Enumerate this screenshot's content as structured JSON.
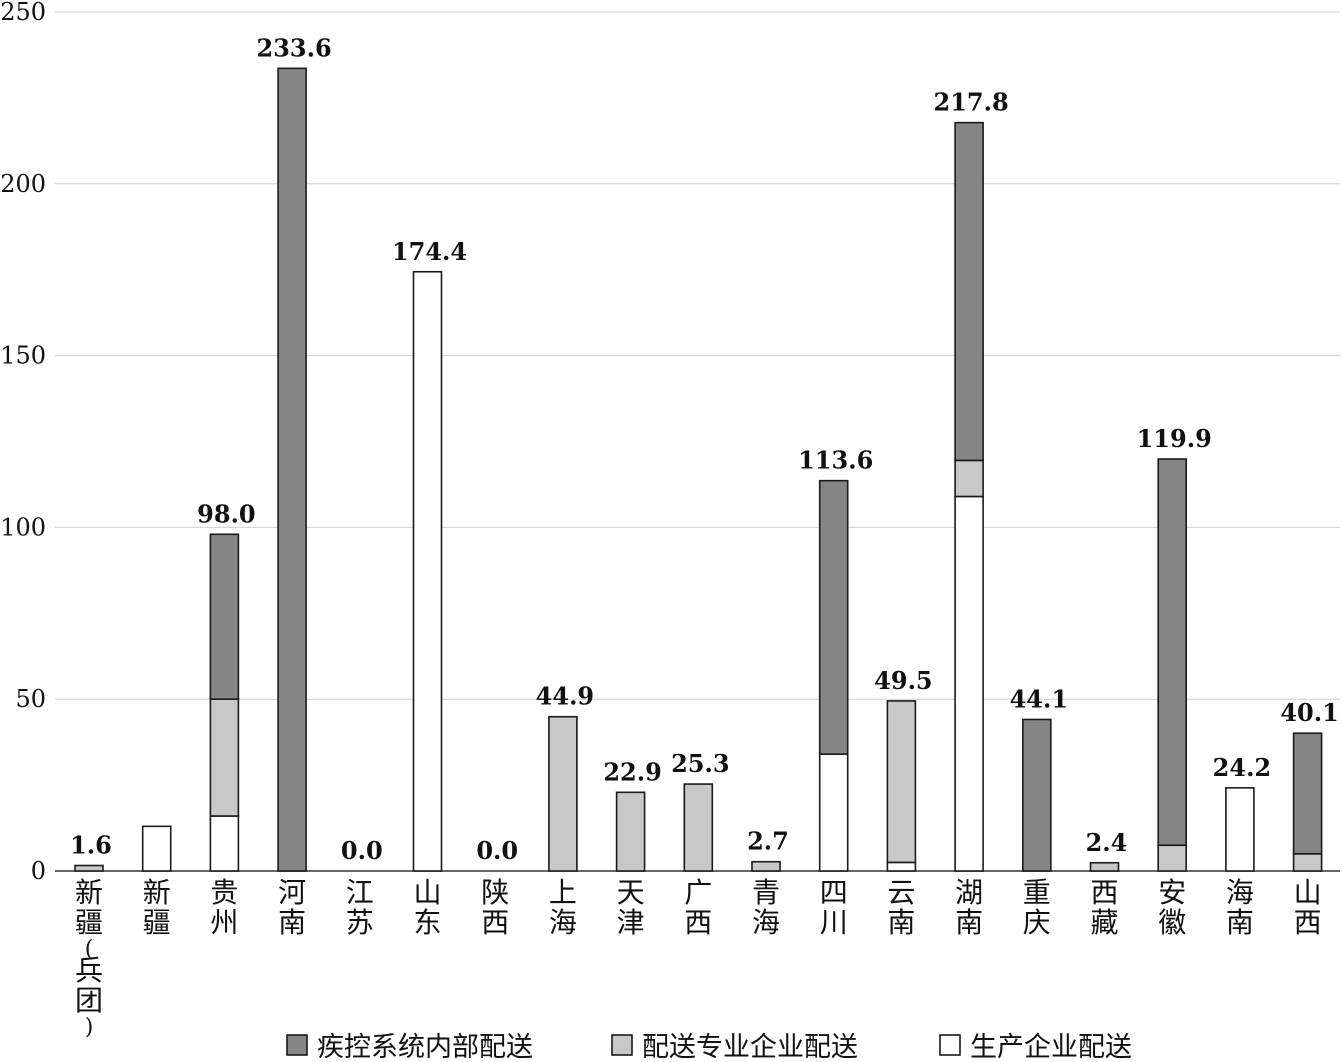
{
  "chart_data": {
    "type": "bar",
    "stacked": true,
    "title": "",
    "xlabel": "",
    "ylabel": "",
    "ylim": [
      0,
      250
    ],
    "yticks": [
      0,
      50,
      100,
      150,
      200,
      250
    ],
    "grid": true,
    "legend_position": "bottom",
    "categories": [
      "新疆(兵团)",
      "新疆",
      "贵州",
      "河南",
      "江苏",
      "山东",
      "陕西",
      "上海",
      "天津",
      "广西",
      "青海",
      "四川",
      "云南",
      "湖南",
      "重庆",
      "西藏",
      "安徽",
      "海南",
      "山西"
    ],
    "series": [
      {
        "name": "生产企业配送",
        "color": "#ffffff",
        "values": [
          0,
          13,
          16,
          0,
          0,
          174.4,
          0,
          0,
          0,
          0,
          0,
          34,
          2.5,
          109,
          0,
          0,
          0,
          24.2,
          0
        ]
      },
      {
        "name": "配送专业企业配送",
        "color": "#c8c8c8",
        "values": [
          1.6,
          0,
          34,
          0,
          0,
          0,
          0,
          44.9,
          22.9,
          25.3,
          2.7,
          0,
          47,
          10.5,
          0,
          2.4,
          7.5,
          0,
          5
        ]
      },
      {
        "name": "疾控系统内部配送",
        "color": "#858585",
        "values": [
          0,
          0,
          48,
          233.6,
          0,
          0,
          0,
          0,
          0,
          0,
          0,
          79.6,
          0,
          98.3,
          44.1,
          0,
          112.4,
          0,
          35.1
        ]
      }
    ],
    "totals": [
      "1.6",
      "",
      "98.0",
      "233.6",
      "0.0",
      "174.4",
      "0.0",
      "44.9",
      "22.9",
      "25.3",
      "2.7",
      "113.6",
      "49.5",
      "217.8",
      "44.1",
      "2.4",
      "119.9",
      "24.2",
      "40.1"
    ],
    "legend": [
      {
        "label": "疾控系统内部配送",
        "color": "#858585"
      },
      {
        "label": "配送专业企业配送",
        "color": "#c8c8c8"
      },
      {
        "label": "生产企业配送",
        "color": "#ffffff"
      }
    ]
  }
}
